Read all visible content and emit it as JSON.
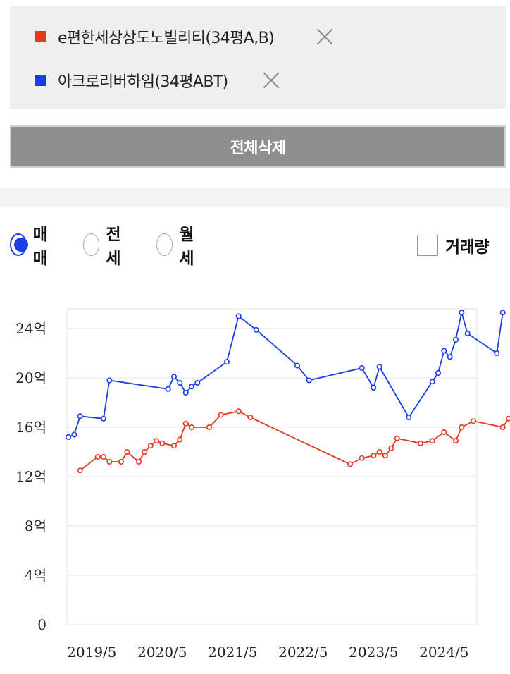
{
  "compare_list": {
    "items": [
      {
        "name": "e편한세상상도노빌리티(34평A,B)",
        "color": "#e23a1e",
        "remove_icon": "close-icon"
      },
      {
        "name": "아크로리버하임(34평ABT)",
        "color": "#1b3de6",
        "remove_icon": "close-icon"
      }
    ],
    "delete_all_label": "전체삭제"
  },
  "trade_type_tabs": {
    "options": [
      {
        "label": "매매",
        "selected": true
      },
      {
        "label": "전세",
        "selected": false
      },
      {
        "label": "월세",
        "selected": false
      }
    ]
  },
  "volume_toggle": {
    "label": "거래량",
    "checked": false
  },
  "chart_data": {
    "type": "line",
    "xlabel": "",
    "ylabel": "",
    "x_tick_labels": [
      "2019/5",
      "2020/5",
      "2021/5",
      "2022/5",
      "2023/5",
      "2024/5"
    ],
    "y_tick_labels": [
      "0",
      "4억",
      "8억",
      "12억",
      "16억",
      "20억",
      "24억"
    ],
    "ylim": [
      0,
      24
    ],
    "y_tick_values": [
      0,
      4,
      8,
      12,
      16,
      20,
      24
    ],
    "grid": "horizontal",
    "series": [
      {
        "name": "아크로리버하임(34평ABT)",
        "color": "#1b3de6",
        "points": [
          [
            "2019-01",
            15.2
          ],
          [
            "2019-02",
            15.4
          ],
          [
            "2019-03",
            16.9
          ],
          [
            "2019-07",
            16.7
          ],
          [
            "2019-08",
            19.8
          ],
          [
            "2020-06",
            19.1
          ],
          [
            "2020-07",
            20.1
          ],
          [
            "2020-08",
            19.6
          ],
          [
            "2020-09",
            18.8
          ],
          [
            "2020-10",
            19.3
          ],
          [
            "2020-11",
            19.6
          ],
          [
            "2021-04",
            21.3
          ],
          [
            "2021-06",
            25.0
          ],
          [
            "2021-09",
            23.9
          ],
          [
            "2022-04",
            21.0
          ],
          [
            "2022-06",
            19.8
          ],
          [
            "2023-03",
            20.8
          ],
          [
            "2023-05",
            19.2
          ],
          [
            "2023-06",
            20.9
          ],
          [
            "2023-11",
            16.8
          ],
          [
            "2024-03",
            19.7
          ],
          [
            "2024-04",
            20.4
          ],
          [
            "2024-05",
            22.2
          ],
          [
            "2024-06",
            21.7
          ],
          [
            "2024-07",
            23.1
          ],
          [
            "2024-08",
            25.3
          ],
          [
            "2024-09",
            23.6
          ],
          [
            "2025-02",
            22.0
          ],
          [
            "2025-03",
            25.3
          ]
        ]
      },
      {
        "name": "e편한세상상도노빌리티(34평A,B)",
        "color": "#e23a1e",
        "points": [
          [
            "2019-03",
            12.5
          ],
          [
            "2019-06",
            13.6
          ],
          [
            "2019-07",
            13.6
          ],
          [
            "2019-08",
            13.2
          ],
          [
            "2019-10",
            13.2
          ],
          [
            "2019-11",
            14.0
          ],
          [
            "2020-01",
            13.2
          ],
          [
            "2020-02",
            14.0
          ],
          [
            "2020-03",
            14.5
          ],
          [
            "2020-04",
            14.9
          ],
          [
            "2020-05",
            14.7
          ],
          [
            "2020-07",
            14.5
          ],
          [
            "2020-08",
            15.0
          ],
          [
            "2020-09",
            16.3
          ],
          [
            "2020-10",
            16.0
          ],
          [
            "2021-01",
            16.0
          ],
          [
            "2021-03",
            17.0
          ],
          [
            "2021-06",
            17.3
          ],
          [
            "2021-08",
            16.8
          ],
          [
            "2023-01",
            13.0
          ],
          [
            "2023-03",
            13.5
          ],
          [
            "2023-05",
            13.7
          ],
          [
            "2023-06",
            14.0
          ],
          [
            "2023-07",
            13.7
          ],
          [
            "2023-08",
            14.3
          ],
          [
            "2023-09",
            15.1
          ],
          [
            "2024-01",
            14.7
          ],
          [
            "2024-03",
            14.9
          ],
          [
            "2024-05",
            15.6
          ],
          [
            "2024-07",
            14.9
          ],
          [
            "2024-08",
            16.0
          ],
          [
            "2024-10",
            16.5
          ],
          [
            "2025-03",
            16.0
          ],
          [
            "2025-04",
            16.7
          ]
        ]
      }
    ]
  }
}
